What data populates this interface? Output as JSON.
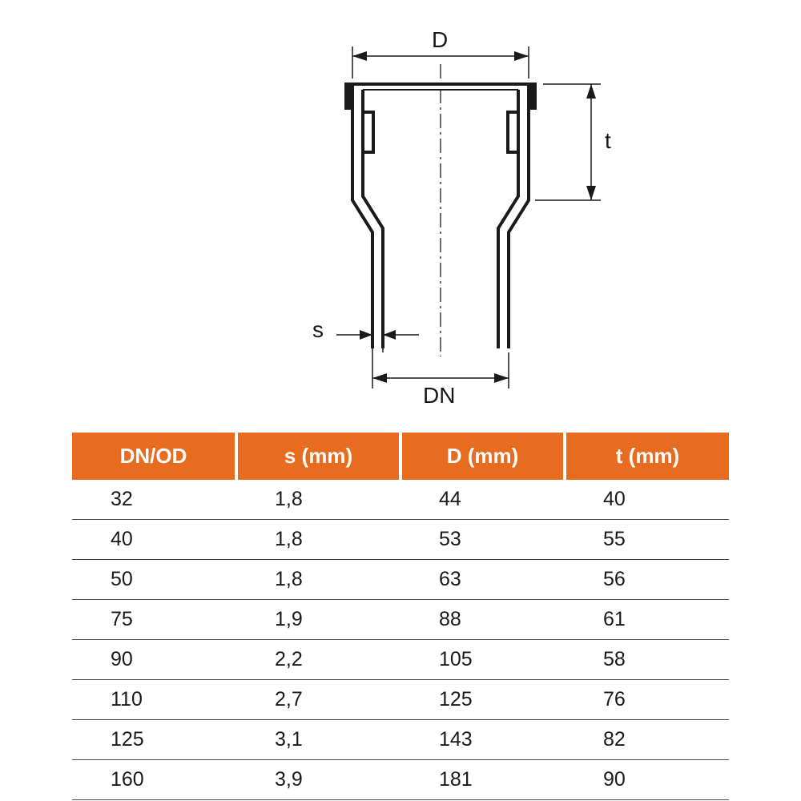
{
  "diagram": {
    "labels": {
      "D": "D",
      "t": "t",
      "s": "s",
      "DN": "DN"
    },
    "stroke_color": "#1a1a1a",
    "stroke_width_outline": 3,
    "stroke_width_thin": 1.5,
    "label_fontsize": 28,
    "label_color": "#181818"
  },
  "table": {
    "header_bg": "#e86c1f",
    "header_fg": "#ffffff",
    "header_fontsize": 26,
    "row_border_color": "#444444",
    "cell_fontsize": 25,
    "cell_color": "#1a1a1a",
    "header_gap_color": "#ffffff",
    "columns": [
      "DN/OD",
      "s (mm)",
      "D (mm)",
      "t (mm)"
    ],
    "col_widths_pct": [
      25,
      25,
      25,
      25
    ],
    "rows": [
      [
        "32",
        "1,8",
        "44",
        "40"
      ],
      [
        "40",
        "1,8",
        "53",
        "55"
      ],
      [
        "50",
        "1,8",
        "63",
        "56"
      ],
      [
        "75",
        "1,9",
        "88",
        "61"
      ],
      [
        "90",
        "2,2",
        "105",
        "58"
      ],
      [
        "110",
        "2,7",
        "125",
        "76"
      ],
      [
        "125",
        "3,1",
        "143",
        "82"
      ],
      [
        "160",
        "3,9",
        "181",
        "90"
      ]
    ]
  }
}
